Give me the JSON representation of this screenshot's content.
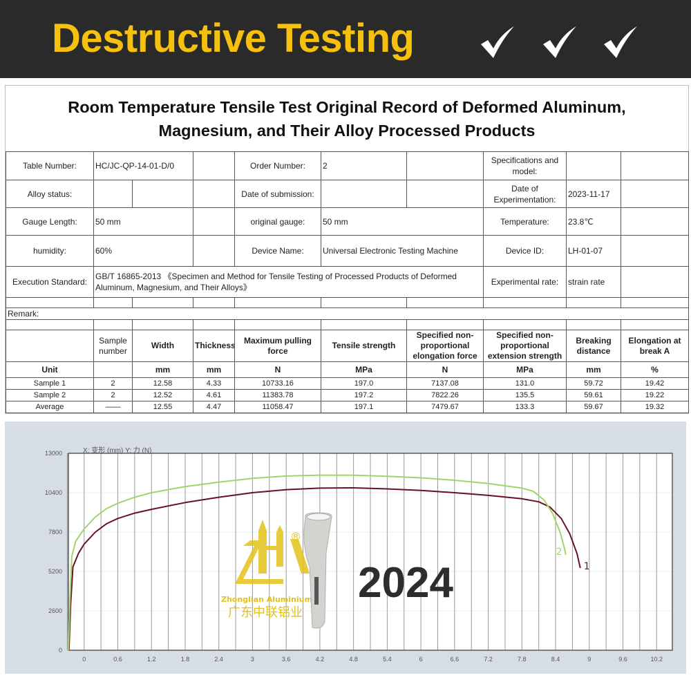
{
  "banner": {
    "title": "Destructive Testing",
    "checks": [
      "check-icon",
      "check-icon",
      "check-icon"
    ],
    "title_color": "#f6c10e",
    "bg_color": "#2a2a2a"
  },
  "document": {
    "title_line1": "Room Temperature Tensile Test Original Record of Deformed Aluminum,",
    "title_line2": "Magnesium, and Their Alloy Processed Products",
    "info": {
      "table_number_label": "Table Number:",
      "table_number": "HC/JC-QP-14-01-D/0",
      "order_number_label": "Order Number:",
      "order_number": "2",
      "spec_label": "Specifications and model:",
      "alloy_status_label": "Alloy status:",
      "submission_label": "Date of submission:",
      "experiment_date_label": "Date of Experimentation:",
      "experiment_date": "2023-11-17",
      "gauge_length_label": "Gauge Length:",
      "gauge_length": "50 mm",
      "original_gauge_label": "original gauge:",
      "original_gauge": "50 mm",
      "temperature_label": "Temperature:",
      "temperature": "23.8℃",
      "humidity_label": "humidity:",
      "humidity": "60%",
      "device_name_label": "Device Name:",
      "device_name": "Universal Electronic Testing Machine",
      "device_id_label": "Device ID:",
      "device_id": "LH-01-07",
      "standard_label": "Execution Standard:",
      "standard": "GB/T 16865-2013 《Specimen and Method for Tensile Testing of Processed Products of Deformed Aluminum, Magnesium, and Their Alloys》",
      "rate_label": "Experimental rate:",
      "rate": "strain rate",
      "remark_label": "Remark:"
    },
    "results": {
      "headers": [
        "",
        "Sample number",
        "Width",
        "Thickness",
        "Maximum pulling force",
        "Tensile strength",
        "Specified non-proportional elongation force",
        "Specified non-proportional extension strength",
        "Breaking distance",
        "Elongation at break A"
      ],
      "units": [
        "Unit",
        "",
        "mm",
        "mm",
        "N",
        "MPa",
        "N",
        "MPa",
        "mm",
        "%"
      ],
      "rows": [
        [
          "Sample 1",
          "2",
          "12.58",
          "4.33",
          "10733.16",
          "197.0",
          "7137.08",
          "131.0",
          "59.72",
          "19.42"
        ],
        [
          "Sample 2",
          "2",
          "12.52",
          "4.61",
          "11383.78",
          "197.2",
          "7822.26",
          "135.5",
          "59.61",
          "19.22"
        ],
        [
          "Average",
          "——",
          "12.55",
          "4.47",
          "11058.47",
          "197.1",
          "7479.67",
          "133.3",
          "59.67",
          "19.32"
        ]
      ]
    }
  },
  "chart_data": {
    "type": "line",
    "axis_caption": "X: 变形 (mm)  Y: 力 (N)",
    "xlabel": "变形 (mm)",
    "ylabel": "力 (N)",
    "xlim": [
      -0.28,
      10.48
    ],
    "ylim": [
      0,
      13000
    ],
    "x_ticks": [
      "0",
      "0.6",
      "1.2",
      "1.8",
      "2.4",
      "3",
      "3.6",
      "4.2",
      "4.8",
      "5.4",
      "6",
      "6.6",
      "7.2",
      "7.8",
      "8.4",
      "9",
      "9.6",
      "10.2"
    ],
    "y_ticks": [
      "0",
      "2600",
      "5200",
      "7800",
      "10400",
      "13000"
    ],
    "grid": "vertical every 0.3",
    "series": [
      {
        "name": "1",
        "color": "#6b1020",
        "x": [
          -0.27,
          -0.24,
          -0.2,
          -0.1,
          0,
          0.2,
          0.4,
          0.6,
          0.9,
          1.2,
          1.8,
          2.4,
          3,
          3.6,
          4.2,
          4.8,
          5.4,
          6,
          6.6,
          7.2,
          7.8,
          8.1,
          8.3,
          8.5,
          8.65,
          8.78,
          8.84
        ],
        "y": [
          0,
          3000,
          5500,
          6400,
          7000,
          7800,
          8350,
          8700,
          9050,
          9300,
          9750,
          10100,
          10400,
          10600,
          10700,
          10720,
          10650,
          10550,
          10400,
          10220,
          10000,
          9800,
          9450,
          8700,
          7700,
          6400,
          5430
        ]
      },
      {
        "name": "2",
        "color": "#9fd56a",
        "x": [
          -0.28,
          -0.25,
          -0.22,
          -0.15,
          0,
          0.2,
          0.4,
          0.6,
          0.9,
          1.2,
          1.8,
          2.4,
          3,
          3.6,
          4.2,
          4.8,
          5.4,
          6,
          6.6,
          7.2,
          7.8,
          8.0,
          8.2,
          8.35,
          8.48,
          8.56,
          8.58
        ],
        "y": [
          0,
          3500,
          6200,
          7200,
          8000,
          8800,
          9350,
          9700,
          10100,
          10400,
          10800,
          11100,
          11350,
          11500,
          11560,
          11550,
          11480,
          11380,
          11220,
          11000,
          10700,
          10500,
          9900,
          9000,
          7800,
          6700,
          6300
        ]
      }
    ]
  },
  "watermark": {
    "brand_en": "Zhonglian Aluminium",
    "brand_cn": "广东中联铝业",
    "year": "2024"
  }
}
